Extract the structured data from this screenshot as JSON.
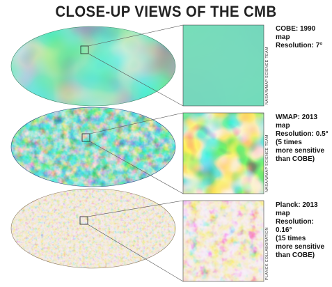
{
  "title": "CLOSE-UP VIEWS OF THE CMB",
  "maps": [
    {
      "caption_lines": [
        "COBE: 1990 map",
        "Resolution: 7°"
      ],
      "credit": "NASA/WMAP SCIENCE TEAM",
      "style": "cobe"
    },
    {
      "caption_lines": [
        "WMAP: 2013 map",
        "Resolution: 0.5°",
        "(5 times",
        "more sensitive",
        "than COBE)"
      ],
      "credit": "NASA/WMAP SCIENCE TEAM",
      "style": "wmap"
    },
    {
      "caption_lines": [
        "Planck: 2013 map",
        "Resolution: 0.16°",
        "(15 times",
        "more sensitive",
        "than COBE)"
      ],
      "credit": "PLANCK COLLABORATION",
      "style": "planck"
    }
  ],
  "colors": {
    "cobe_base": "#2fb3a0",
    "wmap_base": "#1f6fb5",
    "planck_base": "#d9c9a6",
    "connector": "#555555"
  }
}
